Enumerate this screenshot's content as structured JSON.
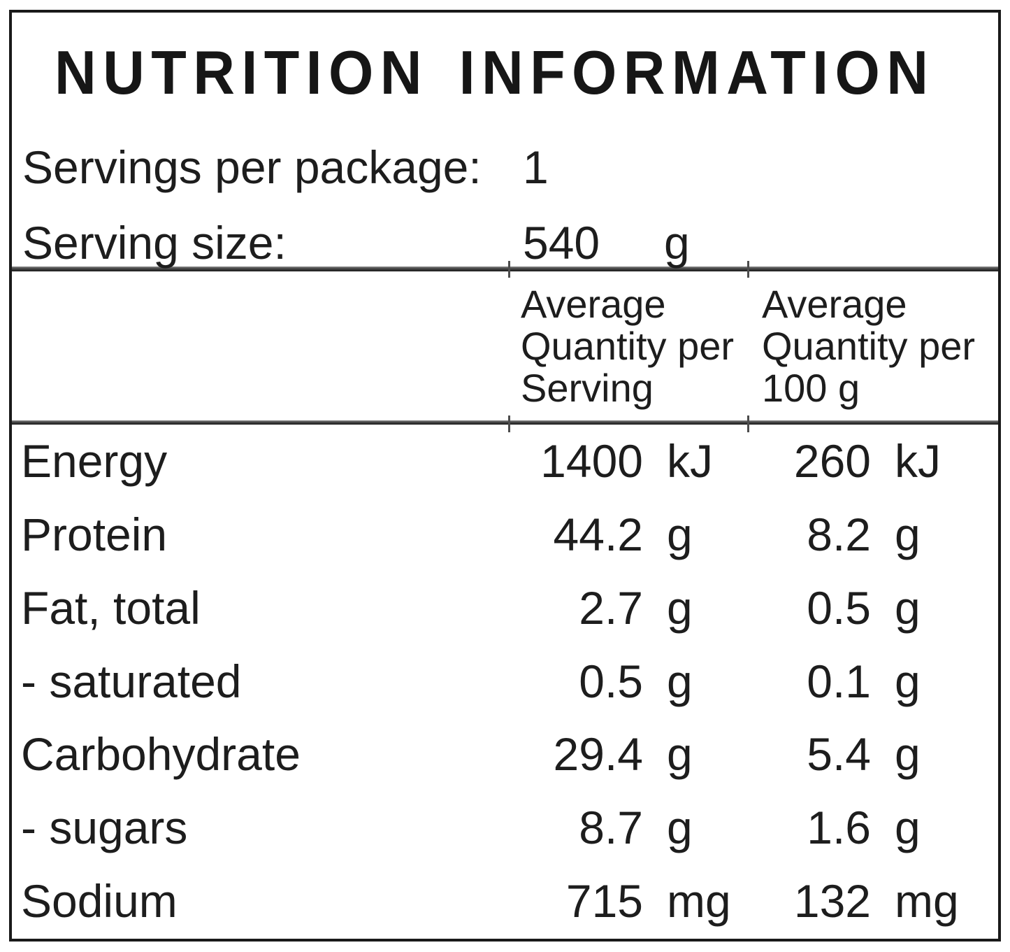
{
  "title": "NUTRITION INFORMATION",
  "servings": {
    "label": "Servings per package:",
    "value": "1"
  },
  "serving_size": {
    "label": "Serving size:",
    "value": "540",
    "unit": "g"
  },
  "columns": {
    "serving": {
      "line1": "Average",
      "line2": "Quantity per",
      "line3": "Serving"
    },
    "per100": {
      "line1": "Average",
      "line2": "Quantity per",
      "line3": "100 g"
    }
  },
  "rows": [
    {
      "name": "Energy",
      "serving_value": "1400",
      "serving_unit": "kJ",
      "per100_value": "260",
      "per100_unit": "kJ"
    },
    {
      "name": "Protein",
      "serving_value": "44.2",
      "serving_unit": "g",
      "per100_value": "8.2",
      "per100_unit": "g"
    },
    {
      "name": "Fat, total",
      "serving_value": "2.7",
      "serving_unit": "g",
      "per100_value": "0.5",
      "per100_unit": "g"
    },
    {
      "name": "- saturated",
      "serving_value": "0.5",
      "serving_unit": "g",
      "per100_value": "0.1",
      "per100_unit": "g"
    },
    {
      "name": "Carbohydrate",
      "serving_value": "29.4",
      "serving_unit": "g",
      "per100_value": "5.4",
      "per100_unit": "g"
    },
    {
      "name": "- sugars",
      "serving_value": "8.7",
      "serving_unit": "g",
      "per100_value": "1.6",
      "per100_unit": "g"
    },
    {
      "name": "Sodium",
      "serving_value": "715",
      "serving_unit": "mg",
      "per100_value": "132",
      "per100_unit": "mg"
    }
  ],
  "colors": {
    "text": "#1d1d1d",
    "border": "#1a1a1a",
    "rule": "#3a3a3a",
    "background": "#ffffff"
  }
}
